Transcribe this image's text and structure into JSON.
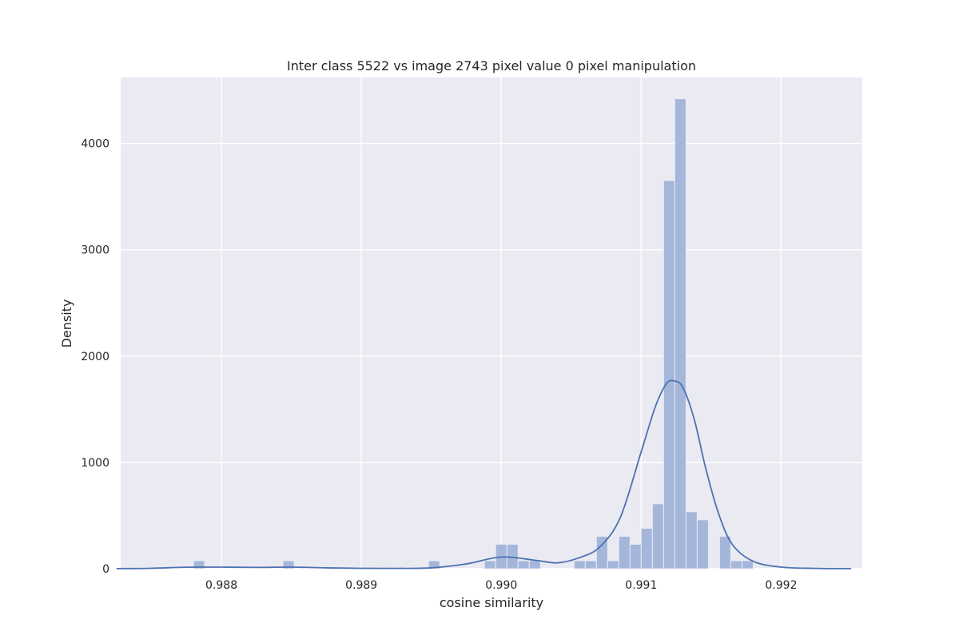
{
  "chart_data": {
    "type": "histogram",
    "title": "Inter class 5522 vs image 2743 pixel value 0 pixel manipulation",
    "xlabel": "cosine similarity",
    "ylabel": "Density",
    "xlim": [
      0.98728,
      0.99258
    ],
    "ylim": [
      0,
      4620
    ],
    "xticks": [
      0.988,
      0.989,
      0.99,
      0.991,
      0.992
    ],
    "xtick_labels": [
      "0.988",
      "0.989",
      "0.990",
      "0.991",
      "0.992"
    ],
    "yticks": [
      0,
      1000,
      2000,
      3000,
      4000
    ],
    "ytick_labels": [
      "0",
      "1000",
      "2000",
      "3000",
      "4000"
    ],
    "grid": true,
    "background_color": "#eaeaf2",
    "grid_color": "#ffffff",
    "bar_color": "#a4b6da",
    "line_color": "#4c72b0",
    "bins": [
      {
        "x0": 0.9878,
        "x1": 0.98788,
        "density": 75
      },
      {
        "x0": 0.98844,
        "x1": 0.98852,
        "density": 75
      },
      {
        "x0": 0.98948,
        "x1": 0.98956,
        "density": 75
      },
      {
        "x0": 0.98988,
        "x1": 0.98996,
        "density": 75
      },
      {
        "x0": 0.98996,
        "x1": 0.99004,
        "density": 230
      },
      {
        "x0": 0.99004,
        "x1": 0.99012,
        "density": 230
      },
      {
        "x0": 0.99012,
        "x1": 0.9902,
        "density": 75
      },
      {
        "x0": 0.9902,
        "x1": 0.99028,
        "density": 75
      },
      {
        "x0": 0.99052,
        "x1": 0.9906,
        "density": 75
      },
      {
        "x0": 0.9906,
        "x1": 0.99068,
        "density": 75
      },
      {
        "x0": 0.99068,
        "x1": 0.99076,
        "density": 305
      },
      {
        "x0": 0.99076,
        "x1": 0.99084,
        "density": 75
      },
      {
        "x0": 0.99084,
        "x1": 0.99092,
        "density": 305
      },
      {
        "x0": 0.99092,
        "x1": 0.991,
        "density": 230
      },
      {
        "x0": 0.991,
        "x1": 0.99108,
        "density": 380
      },
      {
        "x0": 0.99108,
        "x1": 0.99116,
        "density": 610
      },
      {
        "x0": 0.99116,
        "x1": 0.99124,
        "density": 3650
      },
      {
        "x0": 0.99124,
        "x1": 0.99132,
        "density": 4420
      },
      {
        "x0": 0.99132,
        "x1": 0.9914,
        "density": 535
      },
      {
        "x0": 0.9914,
        "x1": 0.99148,
        "density": 460
      },
      {
        "x0": 0.99156,
        "x1": 0.99164,
        "density": 305
      },
      {
        "x0": 0.99164,
        "x1": 0.99172,
        "density": 75
      },
      {
        "x0": 0.99172,
        "x1": 0.9918,
        "density": 75
      }
    ],
    "kde": {
      "x": [
        0.98725,
        0.9875,
        0.98775,
        0.988,
        0.98825,
        0.9885,
        0.98875,
        0.989,
        0.98925,
        0.9895,
        0.98975,
        0.99,
        0.99025,
        0.9904,
        0.99055,
        0.9907,
        0.99085,
        0.991,
        0.9911,
        0.99118,
        0.99124,
        0.9913,
        0.99138,
        0.99146,
        0.99155,
        0.99165,
        0.9918,
        0.992,
        0.99225,
        0.9925
      ],
      "y": [
        1,
        4,
        14,
        15,
        12,
        15,
        8,
        4,
        3,
        8,
        45,
        110,
        78,
        55,
        100,
        200,
        480,
        1100,
        1520,
        1740,
        1765,
        1700,
        1400,
        950,
        530,
        230,
        70,
        15,
        3,
        1
      ]
    }
  }
}
